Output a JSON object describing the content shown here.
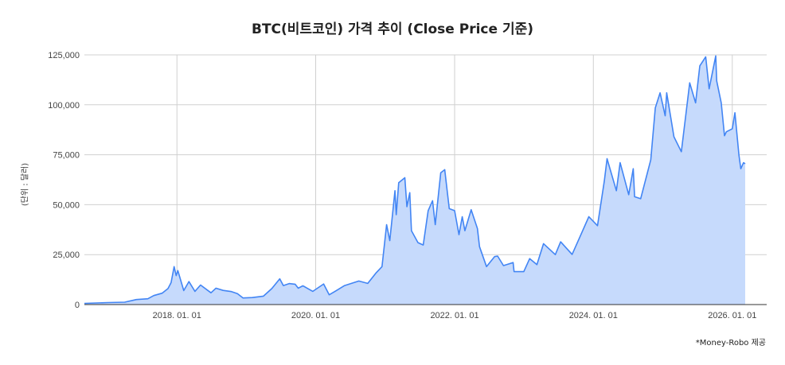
{
  "chart_data": {
    "type": "area",
    "title": "BTC(비트코인) 가격 추이 (Close Price 기준)",
    "ylabel": "(단위 : 달러)",
    "xlabel": "",
    "x_ticks": [
      "2018. 01. 01",
      "2020. 01. 01",
      "2022. 01. 01",
      "2024. 01. 01",
      "2026. 01. 01"
    ],
    "x_range": [
      "2016-09-01",
      "2026-07-01"
    ],
    "y_ticks": [
      "0",
      "25,000",
      "50,000",
      "75,000",
      "100,000",
      "125,000"
    ],
    "ylim": [
      0,
      125000
    ],
    "grid": true,
    "colors": {
      "line": "#4285f4",
      "fill": "#c6dafc"
    },
    "series": [
      {
        "points": [
          [
            "2016-09-01",
            600
          ],
          [
            "2017-01-01",
            1000
          ],
          [
            "2017-04-01",
            1200
          ],
          [
            "2017-06-01",
            2500
          ],
          [
            "2017-08-01",
            2900
          ],
          [
            "2017-09-01",
            4500
          ],
          [
            "2017-10-15",
            5700
          ],
          [
            "2017-11-15",
            8000
          ],
          [
            "2017-12-01",
            11000
          ],
          [
            "2017-12-17",
            19000
          ],
          [
            "2017-12-28",
            14500
          ],
          [
            "2018-01-06",
            17000
          ],
          [
            "2018-02-06",
            7000
          ],
          [
            "2018-03-05",
            11500
          ],
          [
            "2018-04-06",
            6600
          ],
          [
            "2018-05-05",
            9800
          ],
          [
            "2018-06-29",
            5900
          ],
          [
            "2018-07-25",
            8200
          ],
          [
            "2018-09-01",
            7100
          ],
          [
            "2018-10-15",
            6500
          ],
          [
            "2018-11-15",
            5500
          ],
          [
            "2018-12-15",
            3300
          ],
          [
            "2019-02-01",
            3500
          ],
          [
            "2019-04-01",
            4200
          ],
          [
            "2019-05-15",
            8000
          ],
          [
            "2019-06-26",
            12900
          ],
          [
            "2019-07-15",
            9500
          ],
          [
            "2019-08-15",
            10500
          ],
          [
            "2019-09-15",
            10200
          ],
          [
            "2019-10-01",
            8200
          ],
          [
            "2019-10-26",
            9400
          ],
          [
            "2019-12-17",
            6600
          ],
          [
            "2020-02-12",
            10300
          ],
          [
            "2020-03-12",
            4900
          ],
          [
            "2020-04-15",
            6800
          ],
          [
            "2020-06-01",
            9500
          ],
          [
            "2020-08-15",
            11800
          ],
          [
            "2020-10-01",
            10600
          ],
          [
            "2020-11-15",
            16000
          ],
          [
            "2020-12-15",
            19000
          ],
          [
            "2021-01-08",
            40000
          ],
          [
            "2021-01-25",
            32000
          ],
          [
            "2021-02-21",
            57000
          ],
          [
            "2021-02-28",
            45000
          ],
          [
            "2021-03-13",
            61000
          ],
          [
            "2021-04-14",
            63500
          ],
          [
            "2021-04-25",
            49000
          ],
          [
            "2021-05-10",
            56000
          ],
          [
            "2021-05-19",
            37000
          ],
          [
            "2021-06-22",
            31000
          ],
          [
            "2021-07-20",
            29800
          ],
          [
            "2021-08-15",
            47000
          ],
          [
            "2021-09-07",
            52000
          ],
          [
            "2021-09-21",
            40000
          ],
          [
            "2021-10-20",
            66000
          ],
          [
            "2021-11-10",
            67500
          ],
          [
            "2021-12-04",
            48000
          ],
          [
            "2022-01-01",
            47000
          ],
          [
            "2022-01-24",
            35000
          ],
          [
            "2022-02-10",
            44000
          ],
          [
            "2022-02-24",
            37000
          ],
          [
            "2022-03-29",
            47500
          ],
          [
            "2022-05-01",
            38000
          ],
          [
            "2022-05-12",
            29000
          ],
          [
            "2022-06-18",
            19000
          ],
          [
            "2022-07-30",
            24000
          ],
          [
            "2022-08-15",
            24300
          ],
          [
            "2022-09-15",
            19500
          ],
          [
            "2022-11-05",
            21000
          ],
          [
            "2022-11-10",
            16500
          ],
          [
            "2022-12-31",
            16500
          ],
          [
            "2023-01-31",
            23000
          ],
          [
            "2023-03-10",
            20000
          ],
          [
            "2023-04-14",
            30500
          ],
          [
            "2023-06-15",
            25000
          ],
          [
            "2023-07-13",
            31400
          ],
          [
            "2023-09-11",
            25100
          ],
          [
            "2023-10-25",
            34500
          ],
          [
            "2023-12-08",
            44000
          ],
          [
            "2024-01-23",
            39500
          ],
          [
            "2024-02-28",
            62000
          ],
          [
            "2024-03-13",
            73000
          ],
          [
            "2024-05-01",
            57000
          ],
          [
            "2024-05-21",
            71000
          ],
          [
            "2024-07-05",
            55000
          ],
          [
            "2024-07-29",
            68000
          ],
          [
            "2024-08-05",
            54000
          ],
          [
            "2024-09-06",
            53000
          ],
          [
            "2024-10-29",
            72500
          ],
          [
            "2024-11-22",
            98500
          ],
          [
            "2024-12-17",
            106000
          ],
          [
            "2025-01-13",
            94500
          ],
          [
            "2025-01-21",
            106000
          ],
          [
            "2025-02-28",
            84000
          ],
          [
            "2025-04-08",
            76500
          ],
          [
            "2025-05-22",
            111000
          ],
          [
            "2025-06-22",
            101000
          ],
          [
            "2025-07-14",
            119500
          ],
          [
            "2025-08-14",
            124000
          ],
          [
            "2025-09-01",
            108000
          ],
          [
            "2025-10-06",
            124500
          ],
          [
            "2025-10-11",
            112000
          ],
          [
            "2025-11-04",
            101000
          ],
          [
            "2025-11-21",
            84500
          ],
          [
            "2025-12-01",
            86500
          ],
          [
            "2026-01-01",
            88000
          ],
          [
            "2026-01-15",
            96000
          ],
          [
            "2026-02-05",
            75000
          ],
          [
            "2026-02-15",
            68000
          ],
          [
            "2026-03-01",
            71000
          ],
          [
            "2026-03-10",
            70500
          ]
        ]
      }
    ]
  },
  "footer": {
    "credit": "*Money-Robo 제공"
  }
}
